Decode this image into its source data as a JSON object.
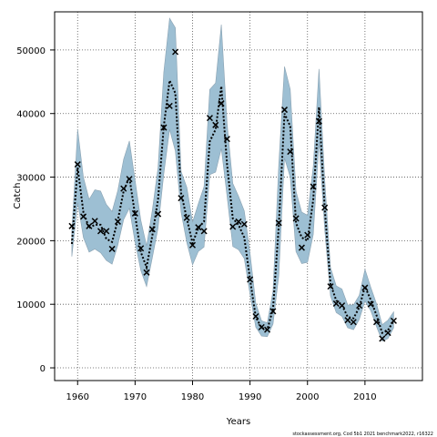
{
  "chart_data": {
    "type": "line",
    "xlabel": "Years",
    "ylabel": "Catch",
    "xlim": [
      1956,
      2020
    ],
    "ylim": [
      -2000,
      56000
    ],
    "grid": true,
    "x_ticks": [
      1960,
      1970,
      1980,
      1990,
      2000,
      2010
    ],
    "y_ticks": [
      0,
      10000,
      20000,
      30000,
      40000,
      50000
    ],
    "x_tick_labels": [
      "1960",
      "1970",
      "1980",
      "1990",
      "2000",
      "2010"
    ],
    "y_tick_labels": [
      "0",
      "10000",
      "20000",
      "30000",
      "40000",
      "50000"
    ],
    "footnote": "stockassessment.org, Cod 5b1 2021 benchmark2022, r16322",
    "colors": {
      "band": "#9dbfd3",
      "band_edge": "#8aa2b2",
      "line": "#000000",
      "obs": "#000000",
      "grid": "#555555"
    },
    "series": [
      {
        "style": "confidence-band",
        "x": [
          1959,
          1960,
          1961,
          1962,
          1963,
          1964,
          1965,
          1966,
          1967,
          1968,
          1969,
          1970,
          1971,
          1972,
          1973,
          1974,
          1975,
          1976,
          1977,
          1978,
          1979,
          1980,
          1981,
          1982,
          1983,
          1984,
          1985,
          1986,
          1987,
          1988,
          1989,
          1990,
          1991,
          1992,
          1993,
          1994,
          1995,
          1996,
          1997,
          1998,
          1999,
          2000,
          2001,
          2002,
          2003,
          2004,
          2005,
          2006,
          2007,
          2008,
          2009,
          2010,
          2011,
          2012,
          2013,
          2014,
          2015
        ],
        "lower": [
          17500,
          26000,
          20500,
          18200,
          18700,
          18100,
          16900,
          16300,
          19300,
          23300,
          25100,
          19700,
          15300,
          12800,
          17300,
          22000,
          30500,
          37500,
          34100,
          24500,
          19700,
          16200,
          18300,
          19000,
          30400,
          30800,
          34500,
          27000,
          19100,
          18600,
          17200,
          11600,
          6400,
          5000,
          4900,
          6900,
          14500,
          33000,
          30000,
          18300,
          16400,
          16600,
          21000,
          35500,
          21700,
          11300,
          8700,
          8100,
          6300,
          6000,
          7600,
          10500,
          9000,
          6500,
          4200,
          4600,
          6300
        ],
        "upper": [
          21500,
          37500,
          30000,
          26500,
          28000,
          27800,
          25700,
          24600,
          27900,
          32800,
          35700,
          29500,
          23200,
          19200,
          24800,
          31500,
          46500,
          55000,
          53500,
          30900,
          28400,
          22900,
          25800,
          28500,
          43800,
          44800,
          54000,
          38500,
          29000,
          27000,
          24700,
          18100,
          10200,
          7400,
          7100,
          12100,
          32000,
          47400,
          43800,
          27800,
          24500,
          24000,
          31700,
          47000,
          29500,
          15800,
          12900,
          12400,
          9900,
          9900,
          11400,
          15500,
          12700,
          10100,
          6800,
          7500,
          8800
        ],
        "estimate": [
          19500,
          31500,
          24500,
          22000,
          22500,
          22500,
          20300,
          19800,
          23200,
          27800,
          30000,
          24000,
          18200,
          15800,
          20800,
          26500,
          38000,
          45200,
          43200,
          27500,
          23500,
          19600,
          22000,
          23000,
          35600,
          37500,
          44300,
          32000,
          23500,
          22500,
          20500,
          14000,
          8000,
          6300,
          6000,
          9300,
          22300,
          40000,
          38000,
          22800,
          20500,
          20000,
          26500,
          41000,
          25000,
          13200,
          10600,
          9900,
          8000,
          7800,
          9500,
          12800,
          10700,
          8300,
          5500,
          5900,
          7400
        ]
      },
      {
        "style": "observed-points",
        "x": [
          1959,
          1960,
          1961,
          1962,
          1963,
          1964,
          1965,
          1966,
          1967,
          1968,
          1969,
          1970,
          1971,
          1972,
          1973,
          1974,
          1975,
          1976,
          1977,
          1978,
          1979,
          1980,
          1981,
          1982,
          1983,
          1984,
          1985,
          1986,
          1987,
          1988,
          1989,
          1990,
          1991,
          1992,
          1993,
          1994,
          1995,
          1996,
          1997,
          1998,
          1999,
          2000,
          2001,
          2002,
          2003,
          2004,
          2005,
          2006,
          2007,
          2008,
          2009,
          2010,
          2011,
          2012,
          2013,
          2014,
          2015
        ],
        "values": [
          22300,
          32000,
          23800,
          22300,
          23100,
          21500,
          21500,
          18700,
          23000,
          28200,
          29700,
          24300,
          18800,
          15000,
          21800,
          24200,
          37800,
          41200,
          49700,
          26700,
          23600,
          19300,
          22100,
          21500,
          39300,
          38200,
          41600,
          36000,
          22200,
          23000,
          22600,
          13900,
          8100,
          6400,
          6000,
          8900,
          22800,
          40600,
          34000,
          23500,
          18900,
          20900,
          28500,
          38800,
          25200,
          12800,
          10100,
          9800,
          7500,
          7200,
          9800,
          12600,
          10000,
          7200,
          4600,
          5500,
          7400
        ]
      }
    ]
  }
}
